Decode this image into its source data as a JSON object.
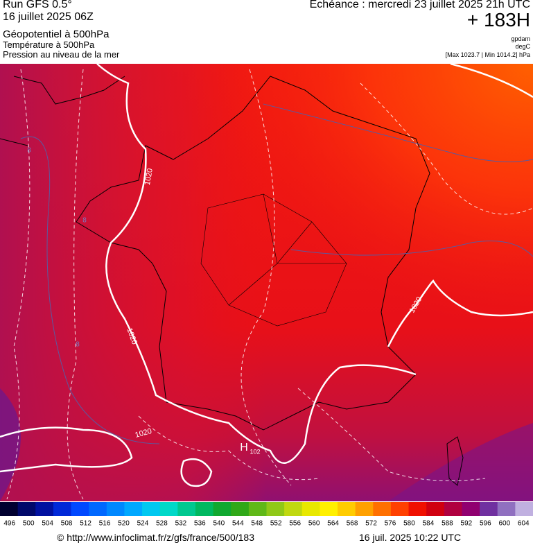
{
  "header": {
    "left": [
      "Run GFS 0.5°",
      "16 juillet 2025 06Z",
      "Géopotentiel à 500hPa",
      "Température à 500hPa",
      "Pression au niveau de la mer"
    ],
    "right": {
      "title": "Echéance : mercredi 23 juillet 2025 21h UTC",
      "lead": "+ 183H",
      "units": [
        "gpdam",
        "degC",
        "[Max 1023.7 | Min 1014.2] hPa"
      ]
    }
  },
  "map": {
    "labels": [
      "1020",
      "1020",
      "1020",
      "1020",
      "H",
      "102",
      "8",
      "8",
      "8"
    ]
  },
  "colorbar": {
    "labels": [
      496,
      500,
      504,
      508,
      512,
      516,
      520,
      524,
      528,
      532,
      536,
      540,
      544,
      548,
      552,
      556,
      560,
      564,
      568,
      572,
      576,
      580,
      584,
      588,
      592,
      596,
      600,
      604
    ],
    "colors": [
      "#000030",
      "#00086a",
      "#0010a0",
      "#0028d8",
      "#0048ff",
      "#0068ff",
      "#0088ff",
      "#00a8ff",
      "#00c8f0",
      "#00d8c8",
      "#00c890",
      "#00b860",
      "#10a830",
      "#30a818",
      "#60b818",
      "#90c818",
      "#c0d810",
      "#e8e800",
      "#fff000",
      "#ffcc00",
      "#ffa000",
      "#ff7000",
      "#ff4000",
      "#f01000",
      "#d00010",
      "#b00040",
      "#900070",
      "#7030a0",
      "#9070c0",
      "#c0b0e0"
    ]
  },
  "footer": {
    "url": "© http://www.infoclimat.fr/z/gfs/france/500/183",
    "date": "16 juil. 2025 10:22 UTC"
  }
}
